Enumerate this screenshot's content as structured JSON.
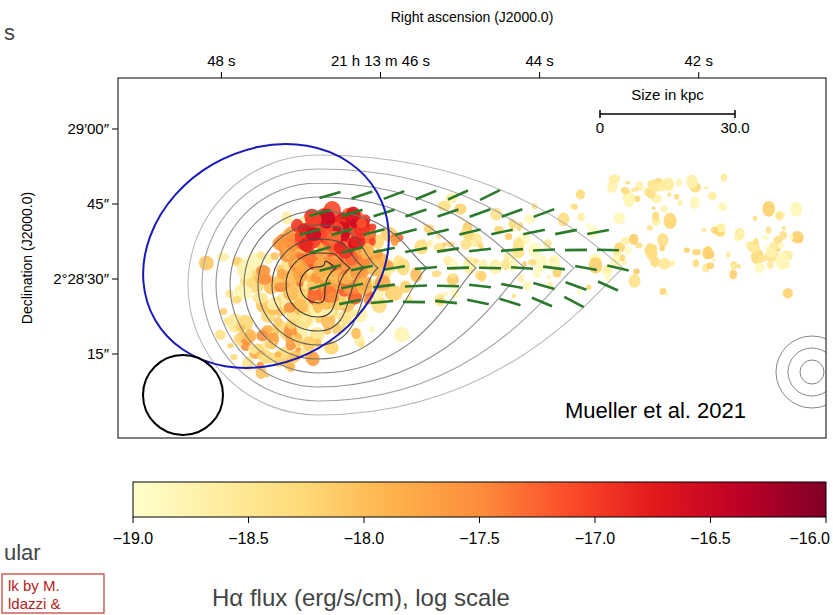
{
  "chart_data": {
    "type": "image",
    "xlabel": "Right ascension (J2000.0)",
    "ylabel": "Declination (J2000.0)",
    "xlim": [
      49.3,
      40.4
    ],
    "xticks": [
      {
        "value": 48,
        "label": "48 s"
      },
      {
        "value": 46,
        "label": "21 h 13 m 46 s"
      },
      {
        "value": 44,
        "label": "44 s"
      },
      {
        "value": 42,
        "label": "42 s"
      }
    ],
    "ylim": [
      -1.8,
      70.2
    ],
    "yticks": [
      {
        "value": 60,
        "label": "29′00″"
      },
      {
        "value": 45,
        "label": "45″"
      },
      {
        "value": 30,
        "label": "2°28′30″"
      },
      {
        "value": 15,
        "label": "15″"
      }
    ],
    "colorbar": {
      "label": "Hα flux (erg/s/cm), log scale",
      "lim": [
        -19,
        -16
      ],
      "ticks": [
        {
          "value": -19,
          "label": "−19.0"
        },
        {
          "value": -18.5,
          "label": "−18.5"
        },
        {
          "value": -18,
          "label": "−18.0"
        },
        {
          "value": -17.5,
          "label": "−17.5"
        },
        {
          "value": -17,
          "label": "−17.0"
        },
        {
          "value": -16.5,
          "label": "−16.5"
        },
        {
          "value": -16,
          "label": "−16.0"
        }
      ]
    },
    "scale_bar": {
      "title": "Size in kpc",
      "lim": [
        0,
        30
      ],
      "ticks": [
        0,
        {
          "value": 30,
          "label": "30.0"
        }
      ]
    },
    "annotations": [
      "Mueller et al. 2021",
      "s",
      "ular",
      "lk by M.",
      "ldazzi &"
    ]
  }
}
